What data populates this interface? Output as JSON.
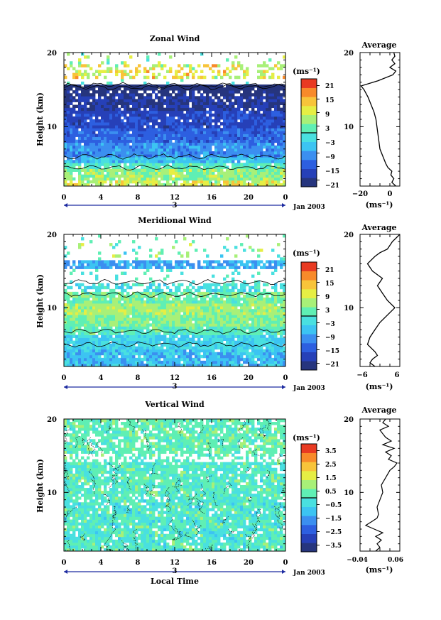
{
  "chart_data": [
    {
      "type": "heatmap",
      "title": "Zonal Wind",
      "ylabel": "Height (km)",
      "xlabel": "",
      "x_ticks": [
        "0",
        "4",
        "8",
        "12",
        "16",
        "20",
        "0"
      ],
      "y_ticks": [
        "20",
        "10"
      ],
      "xlim": [
        0,
        24
      ],
      "ylim": [
        2,
        20
      ],
      "date_marker": "3",
      "date_label": "Jan 2003",
      "colorbar": {
        "unit": "(ms⁻¹)",
        "ticks": [
          "21",
          "15",
          "9",
          "3",
          "−3",
          "−9",
          "−15",
          "−21"
        ],
        "range": [
          -24,
          24
        ]
      },
      "field": {
        "bands": [
          {
            "z": [
              2.0,
              2.8
            ],
            "v": 9,
            "var": 5,
            "fill": 0.8
          },
          {
            "z": [
              2.8,
              4.3
            ],
            "v": 5,
            "var": 4,
            "fill": 0.95
          },
          {
            "z": [
              4.3,
              5.0
            ],
            "v": 1,
            "var": 3,
            "fill": 0.9
          },
          {
            "z": [
              5.0,
              6.0
            ],
            "v": -6,
            "var": 3,
            "fill": 0.95
          },
          {
            "z": [
              6.0,
              8.0
            ],
            "v": -10,
            "var": 3,
            "fill": 0.98
          },
          {
            "z": [
              8.0,
              10.0
            ],
            "v": -14,
            "var": 3,
            "fill": 0.98
          },
          {
            "z": [
              10.0,
              12.0
            ],
            "v": -17,
            "var": 3,
            "fill": 0.95
          },
          {
            "z": [
              12.0,
              14.0
            ],
            "v": -20,
            "var": 3,
            "fill": 0.9
          },
          {
            "z": [
              14.0,
              15.0
            ],
            "v": -22,
            "var": 3,
            "fill": 0.8
          },
          {
            "z": [
              15.0,
              15.6
            ],
            "v": -26,
            "var": 2,
            "fill": 0.95
          },
          {
            "z": [
              15.6,
              16.6
            ],
            "v": 0,
            "var": 2,
            "fill": 0.05
          },
          {
            "z": [
              16.6,
              18.5
            ],
            "v": 10,
            "var": 6,
            "fill": 0.4
          },
          {
            "z": [
              18.5,
              20.0
            ],
            "v": 4,
            "var": 6,
            "fill": 0.08
          }
        ],
        "zero_contours": [
          6.0,
          4.5,
          15.6,
          15.3
        ]
      },
      "average_profile": {
        "title": "Average",
        "xlabel": "(ms⁻¹)",
        "x_ticks": [
          "−20",
          "0"
        ],
        "xlim": [
          -28,
          12
        ],
        "y_ticks": [
          "20",
          "10"
        ],
        "ylim": [
          2,
          20
        ],
        "points": [
          [
            8,
            2
          ],
          [
            4,
            2.5
          ],
          [
            6,
            3
          ],
          [
            3,
            3.5
          ],
          [
            4,
            4
          ],
          [
            0,
            4.5
          ],
          [
            -2,
            5
          ],
          [
            -5,
            6
          ],
          [
            -8,
            7
          ],
          [
            -9,
            8
          ],
          [
            -10,
            9
          ],
          [
            -11,
            10
          ],
          [
            -12,
            11
          ],
          [
            -14,
            12
          ],
          [
            -17,
            13
          ],
          [
            -20,
            14
          ],
          [
            -24,
            15
          ],
          [
            -27,
            15.5
          ],
          [
            -10,
            16.2
          ],
          [
            5,
            17
          ],
          [
            8,
            17.5
          ],
          [
            2,
            18
          ],
          [
            7,
            18.5
          ],
          [
            4,
            19
          ],
          [
            7,
            19.5
          ],
          [
            6,
            20
          ]
        ]
      }
    },
    {
      "type": "heatmap",
      "title": "Meridional Wind",
      "ylabel": "Height (km)",
      "xlabel": "",
      "x_ticks": [
        "0",
        "4",
        "8",
        "12",
        "16",
        "20",
        "0"
      ],
      "y_ticks": [
        "20",
        "10"
      ],
      "xlim": [
        0,
        24
      ],
      "ylim": [
        2,
        20
      ],
      "date_marker": "3",
      "date_label": "Jan 2003",
      "colorbar": {
        "unit": "(ms⁻¹)",
        "ticks": [
          "21",
          "15",
          "9",
          "3",
          "−3",
          "−9",
          "−15",
          "−21"
        ],
        "range": [
          -24,
          24
        ]
      },
      "field": {
        "bands": [
          {
            "z": [
              2.0,
              4.5
            ],
            "v": -6,
            "var": 4,
            "fill": 0.95
          },
          {
            "z": [
              4.5,
              6.5
            ],
            "v": -4,
            "var": 3,
            "fill": 0.95
          },
          {
            "z": [
              6.5,
              7.5
            ],
            "v": 1,
            "var": 3,
            "fill": 0.95
          },
          {
            "z": [
              7.5,
              9.0
            ],
            "v": 4,
            "var": 3,
            "fill": 0.98
          },
          {
            "z": [
              9.0,
              10.5
            ],
            "v": 6,
            "var": 3,
            "fill": 0.98
          },
          {
            "z": [
              10.5,
              12.0
            ],
            "v": 3,
            "var": 3,
            "fill": 0.9
          },
          {
            "z": [
              12.0,
              13.5
            ],
            "v": -2,
            "var": 3,
            "fill": 0.55
          },
          {
            "z": [
              13.5,
              15.5
            ],
            "v": 0,
            "var": 3,
            "fill": 0.1
          },
          {
            "z": [
              15.5,
              16.3
            ],
            "v": -8,
            "var": 3,
            "fill": 0.8
          },
          {
            "z": [
              16.3,
              18.0
            ],
            "v": 2,
            "var": 6,
            "fill": 0.15
          },
          {
            "z": [
              18.0,
              20.0
            ],
            "v": 4,
            "var": 6,
            "fill": 0.06
          }
        ],
        "zero_contours": [
          6.8,
          5.0,
          11.8,
          13.5
        ]
      },
      "average_profile": {
        "title": "Average",
        "xlabel": "(ms⁻¹)",
        "x_ticks": [
          "−6",
          "6"
        ],
        "xlim": [
          -8,
          8
        ],
        "y_ticks": [
          "20",
          "10"
        ],
        "ylim": [
          2,
          20
        ],
        "points": [
          [
            -2,
            2
          ],
          [
            -4,
            2.5
          ],
          [
            -3,
            3
          ],
          [
            -1,
            3.5
          ],
          [
            -2,
            4
          ],
          [
            -5,
            5
          ],
          [
            -4,
            6
          ],
          [
            -2,
            7
          ],
          [
            0,
            8
          ],
          [
            3,
            9
          ],
          [
            6,
            10
          ],
          [
            3,
            11
          ],
          [
            1,
            12
          ],
          [
            -1,
            13
          ],
          [
            1,
            14
          ],
          [
            -3,
            15
          ],
          [
            -5,
            16
          ],
          [
            -2,
            17
          ],
          [
            0,
            17.5
          ],
          [
            3,
            18
          ],
          [
            5,
            19
          ],
          [
            8,
            20
          ]
        ]
      }
    },
    {
      "type": "heatmap",
      "title": "Vertical Wind",
      "ylabel": "Height (km)",
      "xlabel": "Local Time",
      "x_ticks": [
        "0",
        "4",
        "8",
        "12",
        "16",
        "20",
        "0"
      ],
      "y_ticks": [
        "20",
        "10"
      ],
      "xlim": [
        0,
        24
      ],
      "ylim": [
        2,
        20
      ],
      "date_marker": "3",
      "date_label": "Jan 2003",
      "colorbar": {
        "unit": "(ms⁻¹)",
        "ticks": [
          "3.5",
          "2.5",
          "1.5",
          "0.5",
          "−0.5",
          "−1.5",
          "−2.5",
          "−3.5"
        ],
        "range": [
          -4,
          4
        ]
      },
      "field": {
        "bands": [
          {
            "z": [
              2.0,
              9.0
            ],
            "v": 0.0,
            "var": 0.7,
            "fill": 0.9
          },
          {
            "z": [
              9.0,
              14.0
            ],
            "v": 0.1,
            "var": 0.6,
            "fill": 0.85
          },
          {
            "z": [
              14.0,
              15.5
            ],
            "v": 0.2,
            "var": 0.5,
            "fill": 0.4
          },
          {
            "z": [
              15.5,
              20.0
            ],
            "v": 0.3,
            "var": 0.5,
            "fill": 0.8
          }
        ],
        "zero_contours": []
      },
      "average_profile": {
        "title": "Average",
        "xlabel": "(ms⁻¹)",
        "x_ticks": [
          "−0.04",
          "0.06"
        ],
        "xlim": [
          -0.06,
          0.08
        ],
        "y_ticks": [
          "20",
          "10"
        ],
        "ylim": [
          2,
          20
        ],
        "points": [
          [
            -0.005,
            2
          ],
          [
            0.01,
            2.5
          ],
          [
            0.0,
            3
          ],
          [
            0.015,
            3.5
          ],
          [
            -0.005,
            4
          ],
          [
            0.02,
            4.5
          ],
          [
            -0.01,
            5
          ],
          [
            -0.04,
            5.5
          ],
          [
            -0.02,
            6
          ],
          [
            0.0,
            6.5
          ],
          [
            0.005,
            7
          ],
          [
            0.0,
            8
          ],
          [
            0.01,
            9
          ],
          [
            0.02,
            10
          ],
          [
            0.015,
            11
          ],
          [
            0.03,
            12
          ],
          [
            0.045,
            13
          ],
          [
            0.06,
            13.5
          ],
          [
            0.07,
            14
          ],
          [
            0.04,
            14.5
          ],
          [
            0.05,
            15
          ],
          [
            0.03,
            15.5
          ],
          [
            0.06,
            16
          ],
          [
            0.02,
            16.5
          ],
          [
            0.05,
            17
          ],
          [
            0.03,
            17.5
          ],
          [
            0.02,
            18
          ],
          [
            0.01,
            18.5
          ],
          [
            0.04,
            19
          ],
          [
            0.02,
            19.5
          ],
          [
            0.03,
            20
          ]
        ]
      }
    }
  ],
  "colors": {
    "colormap": [
      "#26357e",
      "#2640b8",
      "#2d5fe0",
      "#3b8ff0",
      "#3cc4f2",
      "#49e0e0",
      "#5fefb4",
      "#a8f078",
      "#e6ee44",
      "#f8c43a",
      "#f88a2a",
      "#e83a22"
    ],
    "contour": "#000000",
    "date_bar": "#1c2aa0"
  }
}
